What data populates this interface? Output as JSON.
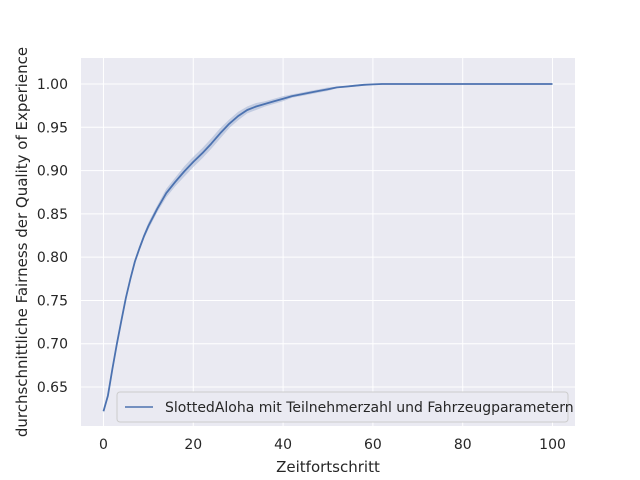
{
  "chart_data": {
    "type": "line",
    "xlabel": "Zeitfortschritt",
    "ylabel": "durchschnittliche Fairness der Quality of Experience",
    "xlim": [
      -5,
      105
    ],
    "ylim": [
      0.605,
      1.03
    ],
    "xticks": [
      0,
      20,
      40,
      60,
      80,
      100
    ],
    "yticks": [
      0.65,
      0.7,
      0.75,
      0.8,
      0.85,
      0.9,
      0.95,
      1.0
    ],
    "xtick_labels": [
      "0",
      "20",
      "40",
      "60",
      "80",
      "100"
    ],
    "ytick_labels": [
      "0.65",
      "0.70",
      "0.75",
      "0.80",
      "0.85",
      "0.90",
      "0.95",
      "1.00"
    ],
    "grid": true,
    "legend_position": "lower-right",
    "series": [
      {
        "name": "SlottedAloha mit Teilnehmerzahl und Fahrzeugparametern",
        "color": "#4c72b0",
        "band_color": "#a9b8d6",
        "x": [
          0,
          1,
          2,
          3,
          4,
          5,
          6,
          7,
          8,
          9,
          10,
          12,
          14,
          16,
          18,
          20,
          22,
          24,
          26,
          28,
          30,
          32,
          34,
          36,
          38,
          40,
          42,
          44,
          46,
          48,
          50,
          52,
          54,
          56,
          58,
          60,
          62,
          65,
          70,
          75,
          80,
          85,
          90,
          95,
          100
        ],
        "y": [
          0.622,
          0.64,
          0.671,
          0.7,
          0.727,
          0.753,
          0.775,
          0.795,
          0.81,
          0.824,
          0.836,
          0.856,
          0.874,
          0.887,
          0.899,
          0.91,
          0.92,
          0.931,
          0.943,
          0.954,
          0.963,
          0.97,
          0.974,
          0.977,
          0.98,
          0.983,
          0.986,
          0.988,
          0.99,
          0.992,
          0.994,
          0.996,
          0.997,
          0.998,
          0.999,
          0.9995,
          1.0,
          1.0,
          1.0,
          1.0,
          1.0,
          1.0,
          1.0,
          1.0,
          1.0
        ],
        "band": [
          0.002,
          0.002,
          0.003,
          0.003,
          0.003,
          0.003,
          0.003,
          0.003,
          0.003,
          0.003,
          0.004,
          0.004,
          0.005,
          0.005,
          0.006,
          0.006,
          0.006,
          0.006,
          0.006,
          0.005,
          0.005,
          0.004,
          0.004,
          0.003,
          0.003,
          0.003,
          0.002,
          0.002,
          0.002,
          0.002,
          0.002,
          0.001,
          0.001,
          0.001,
          0.001,
          0.0005,
          0.0005,
          0,
          0,
          0,
          0,
          0,
          0,
          0,
          0
        ]
      }
    ]
  }
}
